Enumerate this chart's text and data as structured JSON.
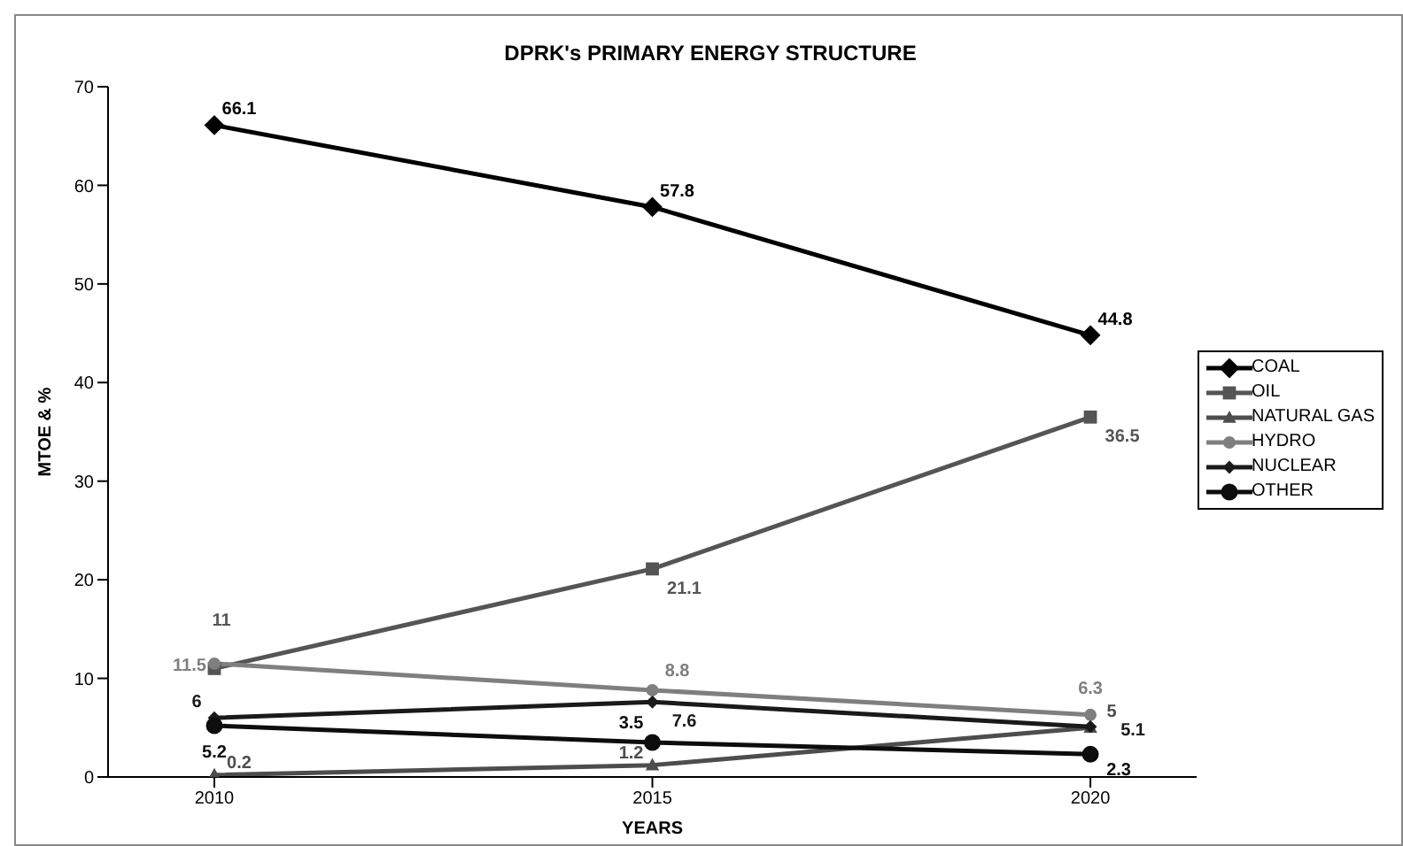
{
  "chart_data": {
    "type": "line",
    "title": "DPRK's PRIMARY ENERGY STRUCTURE",
    "xlabel": "YEARS",
    "ylabel": "MTOE & %",
    "categories": [
      "2010",
      "2015",
      "2020"
    ],
    "series": [
      {
        "name": "COAL",
        "color": "#000000",
        "marker": "diamond",
        "values": [
          66.1,
          57.8,
          44.8
        ]
      },
      {
        "name": "OIL",
        "color": "#555555",
        "marker": "square",
        "values": [
          11,
          21.1,
          36.5
        ]
      },
      {
        "name": "NATURAL GAS",
        "color": "#4d4d4d",
        "marker": "triangle",
        "values": [
          0.2,
          1.2,
          5
        ]
      },
      {
        "name": "HYDRO",
        "color": "#7f7f7f",
        "marker": "circle",
        "values": [
          11.5,
          8.8,
          6.3
        ]
      },
      {
        "name": "NUCLEAR",
        "color": "#1a1a1a",
        "marker": "diamond",
        "values": [
          6,
          7.6,
          5.1
        ]
      },
      {
        "name": "OTHER",
        "color": "#0d0d0d",
        "marker": "circle",
        "values": [
          5.2,
          3.5,
          2.3
        ]
      }
    ],
    "ylim": [
      0,
      70
    ],
    "yticks": [
      0,
      10,
      20,
      30,
      40,
      50,
      60,
      70
    ],
    "legend": "right",
    "data_labels": true,
    "line_style": "solid"
  }
}
